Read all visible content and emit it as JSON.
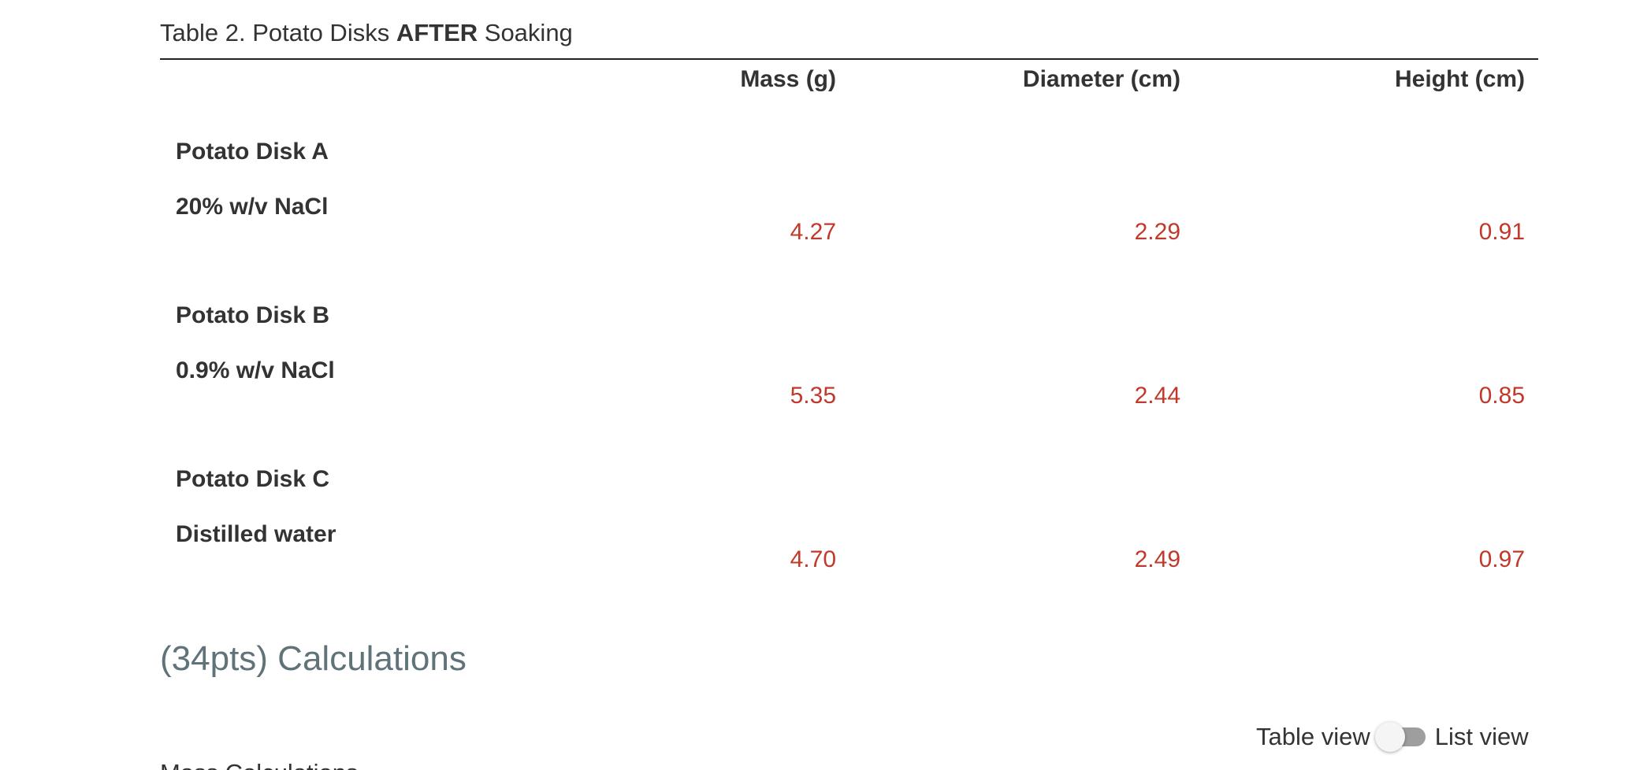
{
  "table": {
    "caption_prefix": "Table 2. Potato Disks ",
    "caption_bold": "AFTER",
    "caption_suffix": " Soaking",
    "columns": [
      "Mass (g)",
      "Diameter (cm)",
      "Height (cm)"
    ],
    "rows": [
      {
        "name": "Potato Disk A",
        "condition": "20% w/v NaCl",
        "mass": "4.27",
        "diameter": "2.29",
        "height": "0.91"
      },
      {
        "name": "Potato Disk B",
        "condition": "0.9% w/v NaCl",
        "mass": "5.35",
        "diameter": "2.44",
        "height": "0.85"
      },
      {
        "name": "Potato Disk C",
        "condition": "Distilled water",
        "mass": "4.70",
        "diameter": "2.49",
        "height": "0.97"
      }
    ]
  },
  "section": {
    "heading": "(34pts) Calculations",
    "next_heading_partial": "Mass Calculations"
  },
  "view_toggle": {
    "left_label": "Table view",
    "right_label": "List view",
    "state": "table"
  },
  "colors": {
    "value_text": "#c0392b",
    "section_heading": "#5f7378",
    "body_text": "#333333"
  }
}
